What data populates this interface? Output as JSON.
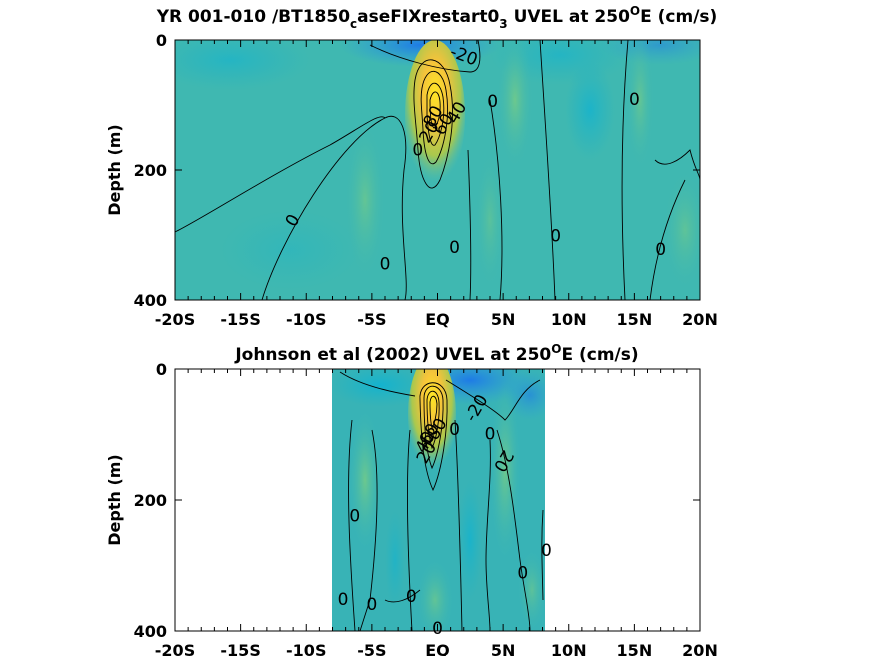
{
  "chart_data": [
    {
      "type": "heatmap",
      "title": {
        "prefix": "YR 001-010 /BT1850",
        "sub1": "c",
        "mid": "aseFIXrestart0",
        "sub2": "3",
        "mid2": " UVEL at 250",
        "sup": "O",
        "suffix": "E (cm/s)"
      },
      "ylabel": "Depth (m)",
      "xlim": [
        -20,
        20
      ],
      "ylim": [
        400,
        0
      ],
      "x_ticks": [
        -20,
        -15,
        -10,
        -5,
        0,
        5,
        10,
        15,
        20
      ],
      "x_tick_labels": [
        "-20S",
        "-15S",
        "-10S",
        "-5S",
        "EQ",
        "5N",
        "10N",
        "15N",
        "20N"
      ],
      "y_ticks": [
        0,
        200,
        400
      ],
      "y_tick_labels": [
        "0",
        "200",
        "400"
      ],
      "data_extent_x": [
        -20,
        20
      ],
      "contour_labels": [
        {
          "text": "-20",
          "x": 2.0,
          "y": 25,
          "angle": 20
        },
        {
          "text": "0",
          "x": 4.2,
          "y": 95,
          "angle": 0
        },
        {
          "text": "0",
          "x": 15.0,
          "y": 92,
          "angle": 0
        },
        {
          "text": "40",
          "x": 1.5,
          "y": 112,
          "angle": -60
        },
        {
          "text": "60",
          "x": 0.5,
          "y": 130,
          "angle": -60
        },
        {
          "text": "80",
          "x": -0.3,
          "y": 118,
          "angle": -60
        },
        {
          "text": "20",
          "x": -0.6,
          "y": 142,
          "angle": -60
        },
        {
          "text": "0",
          "x": -1.5,
          "y": 170,
          "angle": 0
        },
        {
          "text": "0",
          "x": -11.0,
          "y": 278,
          "angle": -60
        },
        {
          "text": "0",
          "x": 1.3,
          "y": 320,
          "angle": 0
        },
        {
          "text": "0",
          "x": 9.0,
          "y": 302,
          "angle": 0
        },
        {
          "text": "0",
          "x": 17.0,
          "y": 323,
          "angle": 0
        },
        {
          "text": "0",
          "x": -4.0,
          "y": 345,
          "angle": 0
        }
      ]
    },
    {
      "type": "heatmap",
      "title": {
        "prefix": "Johnson et al (2002) UVEL at 250",
        "sup": "O",
        "suffix": "E (cm/s)"
      },
      "ylabel": "Depth (m)",
      "xlim": [
        -20,
        20
      ],
      "ylim": [
        400,
        0
      ],
      "x_ticks": [
        -20,
        -15,
        -10,
        -5,
        0,
        5,
        10,
        15,
        20
      ],
      "x_tick_labels": [
        "-20S",
        "-15S",
        "-10S",
        "-5S",
        "EQ",
        "5N",
        "10N",
        "15N",
        "20N"
      ],
      "y_ticks": [
        0,
        200,
        400
      ],
      "y_tick_labels": [
        "0",
        "200",
        "400"
      ],
      "data_extent_x": [
        -8,
        8.3
      ],
      "contour_labels": [
        {
          "text": "-20",
          "x": 3.0,
          "y": 60,
          "angle": -60
        },
        {
          "text": "80",
          "x": 0.0,
          "y": 92,
          "angle": -60
        },
        {
          "text": "60",
          "x": -0.6,
          "y": 100,
          "angle": -60
        },
        {
          "text": "40",
          "x": -0.9,
          "y": 112,
          "angle": -60
        },
        {
          "text": "20",
          "x": -0.8,
          "y": 128,
          "angle": -60
        },
        {
          "text": "0",
          "x": 1.3,
          "y": 93,
          "angle": 0
        },
        {
          "text": "0",
          "x": 4.0,
          "y": 100,
          "angle": 0
        },
        {
          "text": "20",
          "x": 5.0,
          "y": 140,
          "angle": 120
        },
        {
          "text": "0",
          "x": -6.3,
          "y": 225,
          "angle": 0
        },
        {
          "text": "0",
          "x": 8.3,
          "y": 278,
          "angle": 0
        },
        {
          "text": "0",
          "x": 6.5,
          "y": 312,
          "angle": 0
        },
        {
          "text": "0",
          "x": -2.0,
          "y": 348,
          "angle": 0
        },
        {
          "text": "0",
          "x": -7.2,
          "y": 353,
          "angle": 0
        },
        {
          "text": "0",
          "x": -5.0,
          "y": 360,
          "angle": 0
        },
        {
          "text": "0",
          "x": 0.0,
          "y": 397,
          "angle": 0
        }
      ]
    }
  ]
}
